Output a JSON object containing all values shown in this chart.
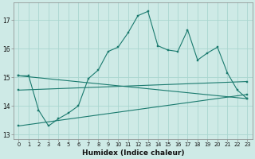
{
  "xlabel": "Humidex (Indice chaleur)",
  "ylabel": "",
  "bg_color": "#ceeae6",
  "grid_color": "#aad6d0",
  "line_color": "#1a7a6e",
  "xlim": [
    -0.5,
    23.5
  ],
  "ylim": [
    12.85,
    17.6
  ],
  "yticks": [
    13,
    14,
    15,
    16,
    17
  ],
  "xticks": [
    0,
    1,
    2,
    3,
    4,
    5,
    6,
    7,
    8,
    9,
    10,
    11,
    12,
    13,
    14,
    15,
    16,
    17,
    18,
    19,
    20,
    21,
    22,
    23
  ],
  "series_main": {
    "x": [
      0,
      1,
      2,
      3,
      4,
      5,
      6,
      7,
      8,
      9,
      10,
      11,
      12,
      13,
      14,
      15,
      16,
      17,
      18,
      19,
      20,
      21,
      22,
      23
    ],
    "y": [
      15.05,
      15.05,
      13.85,
      13.3,
      13.55,
      13.75,
      14.0,
      14.95,
      15.25,
      15.9,
      16.05,
      16.55,
      17.15,
      17.3,
      16.1,
      15.95,
      15.9,
      16.65,
      15.6,
      15.85,
      16.05,
      15.15,
      14.55,
      14.25
    ]
  },
  "series_lines": [
    {
      "x": [
        0,
        23
      ],
      "y": [
        15.05,
        14.25
      ]
    },
    {
      "x": [
        0,
        23
      ],
      "y": [
        14.55,
        14.85
      ]
    },
    {
      "x": [
        0,
        23
      ],
      "y": [
        13.3,
        14.4
      ]
    }
  ]
}
